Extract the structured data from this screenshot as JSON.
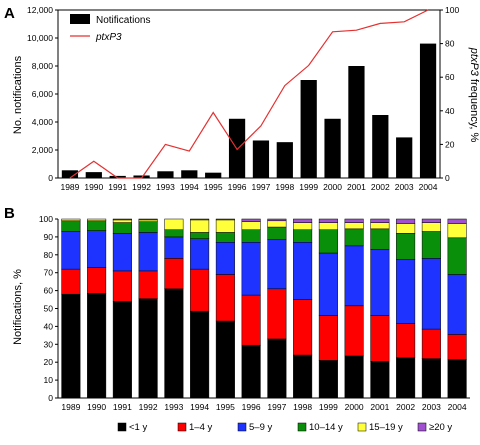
{
  "chart_data": [
    {
      "panel": "A",
      "type": "bar+line",
      "categories": [
        "1989",
        "1990",
        "1991",
        "1992",
        "1993",
        "1994",
        "1995",
        "1996",
        "1997",
        "1998",
        "1999",
        "2000",
        "2001",
        "2002",
        "2003",
        "2004"
      ],
      "series": [
        {
          "name": "Notifications",
          "type": "bar",
          "axis": "left",
          "color": "#000000",
          "values": [
            550,
            420,
            150,
            180,
            480,
            550,
            380,
            4230,
            2680,
            2560,
            7000,
            4230,
            8000,
            4500,
            2900,
            9600
          ]
        },
        {
          "name": "ptxP3",
          "type": "line",
          "axis": "right",
          "color": "#e53030",
          "values": [
            0,
            10,
            0,
            0,
            20,
            16,
            39,
            17,
            31,
            55,
            67,
            87,
            88,
            92,
            93,
            100
          ]
        }
      ],
      "ylabel": "No. notifications",
      "ylabel_right": "ptxP3 frequency, %",
      "ylim": [
        0,
        12000
      ],
      "ylim_right": [
        0,
        100
      ],
      "yticks": [
        "0",
        "2,000",
        "4,000",
        "6,000",
        "8,000",
        "10,000",
        "12,000"
      ],
      "yticks_right": [
        "0",
        "20",
        "40",
        "60",
        "80",
        "100"
      ],
      "legend_position": "top-left"
    },
    {
      "panel": "B",
      "type": "stacked-bar",
      "categories": [
        "1989",
        "1990",
        "1991",
        "1992",
        "1993",
        "1994",
        "1995",
        "1996",
        "1997",
        "1998",
        "1999",
        "2000",
        "2001",
        "2002",
        "2003",
        "2004"
      ],
      "series": [
        {
          "name": "<1 y",
          "color": "#000000",
          "values": [
            58,
            58.5,
            54,
            55.5,
            61,
            48.5,
            43,
            29.5,
            33,
            24,
            21,
            23.5,
            20.5,
            22.5,
            22,
            21.5
          ]
        },
        {
          "name": "1–4 y",
          "color": "#ff0000",
          "values": [
            14,
            14.5,
            17,
            15.5,
            17,
            23.5,
            26,
            28,
            28,
            31,
            25,
            28,
            25.5,
            19,
            16.5,
            14
          ]
        },
        {
          "name": "5–9 y",
          "color": "#1e33ff",
          "values": [
            21,
            20.5,
            21,
            21.5,
            12,
            17,
            18,
            29.5,
            27.5,
            32,
            35,
            33.5,
            37,
            36,
            39.5,
            33.5
          ]
        },
        {
          "name": "10–14 y",
          "color": "#0a8f0a",
          "values": [
            6,
            5.5,
            6,
            6,
            4,
            3.5,
            5.5,
            7,
            7,
            7,
            13,
            9.5,
            11.5,
            14.5,
            15,
            20.5
          ]
        },
        {
          "name": "15–19 y",
          "color": "#ffff3a",
          "values": [
            1,
            1,
            1.5,
            1,
            6,
            7,
            7,
            4.5,
            3.5,
            4,
            4,
            3.5,
            3.5,
            5.5,
            5,
            8
          ]
        },
        {
          "name": "≥20 y",
          "color": "#a050d0",
          "values": [
            0,
            0,
            0.5,
            0.5,
            0,
            0.5,
            0.5,
            1.5,
            1,
            2,
            2,
            2,
            2,
            2.5,
            2,
            2.5
          ]
        }
      ],
      "ylabel": "Notifications, %",
      "ylim": [
        0,
        100
      ],
      "yticks": [
        "0",
        "10",
        "20",
        "30",
        "40",
        "50",
        "60",
        "70",
        "80",
        "90",
        "100"
      ],
      "legend_position": "bottom"
    }
  ]
}
